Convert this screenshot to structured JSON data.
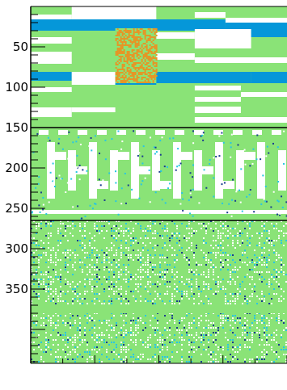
{
  "chart_data": {
    "type": "heatmap",
    "title": "",
    "xlabel": "",
    "ylabel": "",
    "ylim": [
      0,
      442
    ],
    "y_ticks": [
      {
        "value": 50,
        "label": "50"
      },
      {
        "value": 100,
        "label": "100"
      },
      {
        "value": 150,
        "label": "150"
      },
      {
        "value": 200,
        "label": "200"
      },
      {
        "value": 250,
        "label": "250"
      },
      {
        "value": 300,
        "label": "300"
      },
      {
        "value": 350,
        "label": "350"
      }
    ],
    "colors": {
      "background": "#8ae377",
      "band": "#0597d9",
      "highlight": "#ffffff",
      "texture": "#e89424",
      "noise_dark": "#1a3c8f",
      "noise_cyan": "#27c6e3",
      "separator": "#000000"
    },
    "sections": [
      {
        "name": "top",
        "y_start": 0,
        "y_end": 150
      },
      {
        "name": "middle",
        "y_start": 150,
        "y_end": 265
      },
      {
        "name": "bottom",
        "y_start": 265,
        "y_end": 442
      }
    ],
    "region_blocks": [
      {
        "x": [
          0,
          0.16
        ],
        "y": [
          10,
          16
        ],
        "fill": "highlight"
      },
      {
        "x": [
          0.16,
          0.49
        ],
        "y": [
          0,
          16
        ],
        "fill": "highlight"
      },
      {
        "x": [
          0.0,
          0.76
        ],
        "y": [
          16,
          30
        ],
        "fill": "band"
      },
      {
        "x": [
          0.76,
          1.0
        ],
        "y": [
          20,
          38
        ],
        "fill": "band"
      },
      {
        "x": [
          0.64,
          0.76
        ],
        "y": [
          7,
          14
        ],
        "fill": "highlight"
      },
      {
        "x": [
          0.76,
          1.0
        ],
        "y": [
          14,
          20
        ],
        "fill": "highlight"
      },
      {
        "x": [
          0.0,
          0.16
        ],
        "y": [
          38,
          46
        ],
        "fill": "highlight"
      },
      {
        "x": [
          0.49,
          0.64
        ],
        "y": [
          32,
          40
        ],
        "fill": "highlight"
      },
      {
        "x": [
          0.64,
          0.86
        ],
        "y": [
          28,
          52
        ],
        "fill": "highlight"
      },
      {
        "x": [
          0.0,
          0.16
        ],
        "y": [
          56,
          71
        ],
        "fill": "highlight"
      },
      {
        "x": [
          0.49,
          0.64
        ],
        "y": [
          58,
          66
        ],
        "fill": "highlight"
      },
      {
        "x": [
          0.64,
          1.0
        ],
        "y": [
          63,
          70
        ],
        "fill": "highlight"
      },
      {
        "x": [
          0.0,
          0.16
        ],
        "y": [
          81,
          92
        ],
        "fill": "band"
      },
      {
        "x": [
          0.16,
          0.33
        ],
        "y": [
          81,
          97
        ],
        "fill": "highlight"
      },
      {
        "x": [
          0.33,
          0.49
        ],
        "y": [
          81,
          97
        ],
        "fill": "band"
      },
      {
        "x": [
          0.49,
          0.86
        ],
        "y": [
          81,
          95
        ],
        "fill": "band"
      },
      {
        "x": [
          0.86,
          1.0
        ],
        "y": [
          81,
          95
        ],
        "fill": "band"
      },
      {
        "x": [
          0.0,
          0.16
        ],
        "y": [
          100,
          106
        ],
        "fill": "highlight"
      },
      {
        "x": [
          0.64,
          0.82
        ],
        "y": [
          98,
          104
        ],
        "fill": "highlight"
      },
      {
        "x": [
          0.82,
          1.0
        ],
        "y": [
          106,
          112
        ],
        "fill": "highlight"
      },
      {
        "x": [
          0.64,
          0.82
        ],
        "y": [
          112,
          118
        ],
        "fill": "highlight"
      },
      {
        "x": [
          0.0,
          0.16
        ],
        "y": [
          125,
          137
        ],
        "fill": "highlight"
      },
      {
        "x": [
          0.16,
          0.33
        ],
        "y": [
          125,
          131
        ],
        "fill": "highlight"
      },
      {
        "x": [
          0.64,
          0.82
        ],
        "y": [
          124,
          132
        ],
        "fill": "highlight"
      },
      {
        "x": [
          0.64,
          1.0
        ],
        "y": [
          137,
          144
        ],
        "fill": "highlight"
      },
      {
        "x": [
          0.33,
          0.49
        ],
        "y": [
          27,
          95
        ],
        "fill": "texture"
      },
      {
        "x": [
          0.0,
          1.0
        ],
        "y": [
          252,
          257
        ],
        "fill": "highlight"
      },
      {
        "x": [
          0.0,
          1.0
        ],
        "y": [
          370,
          380
        ],
        "fill": "background"
      }
    ]
  }
}
